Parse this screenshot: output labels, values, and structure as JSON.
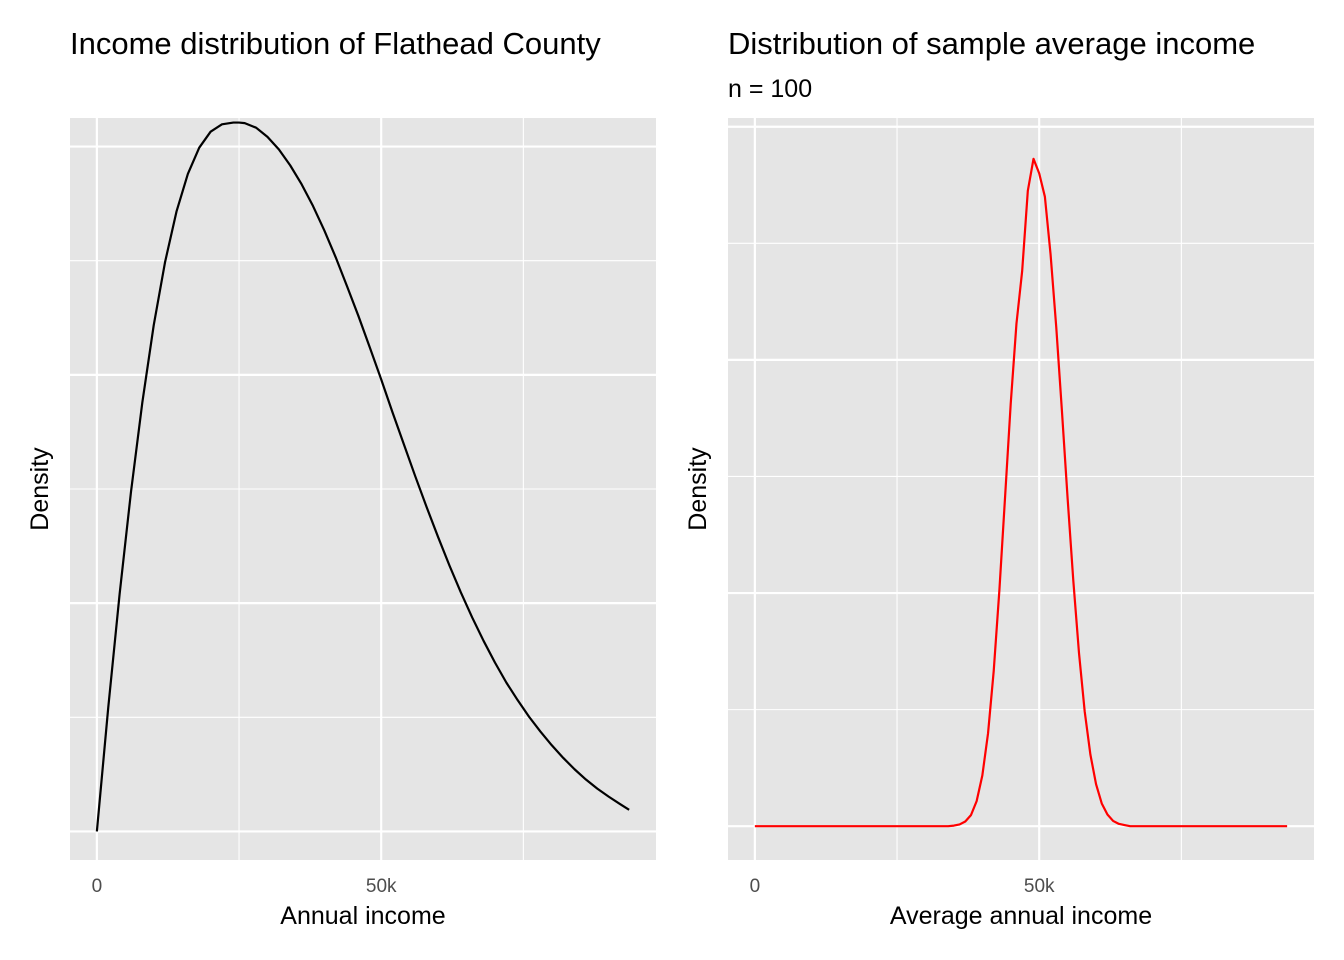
{
  "chart_data": [
    {
      "type": "line",
      "title": "Income distribution of Flathead County",
      "subtitle": "",
      "xlabel": "Annual income",
      "ylabel": "Density",
      "xlim": [
        -4725,
        98325
      ],
      "ylim": [
        -5e-07,
        1.25e-05
      ],
      "x_ticks": [
        0,
        50000
      ],
      "x_tick_labels": [
        "0",
        "50k"
      ],
      "x_minor_grid": [
        25000,
        75000
      ],
      "y_major_grid": [
        0,
        4e-06,
        8e-06,
        1.2e-05
      ],
      "y_minor_grid": [
        2e-06,
        6e-06,
        1e-05
      ],
      "y_tick_labels_shown": false,
      "grid": true,
      "legend": "none",
      "series": [
        {
          "color": "#000000",
          "x": [
            0,
            2000,
            4000,
            6000,
            8000,
            10000,
            12000,
            14000,
            16000,
            18000,
            20000,
            22000,
            24000,
            25000,
            26000,
            28000,
            30000,
            32000,
            34000,
            36000,
            38000,
            40000,
            42000,
            44000,
            46000,
            48000,
            50000,
            52000,
            54000,
            56000,
            58000,
            60000,
            62000,
            64000,
            66000,
            68000,
            70000,
            72000,
            74000,
            76000,
            78000,
            80000,
            82000,
            84000,
            86000,
            88000,
            90000,
            92000,
            93600
          ],
          "y": [
            0,
            2.17e-06,
            4.16e-06,
            5.95e-06,
            7.52e-06,
            8.87e-06,
            9.98e-06,
            1.086e-05,
            1.152e-05,
            1.198e-05,
            1.226e-05,
            1.239e-05,
            1.242e-05,
            1.242e-05,
            1.241e-05,
            1.233e-05,
            1.217e-05,
            1.195e-05,
            1.167e-05,
            1.134e-05,
            1.096e-05,
            1.053e-05,
            1.006e-05,
            9.55e-06,
            9.03e-06,
            8.48e-06,
            7.92e-06,
            7.34e-06,
            6.78e-06,
            6.22e-06,
            5.68e-06,
            5.16e-06,
            4.66e-06,
            4.19e-06,
            3.75e-06,
            3.34e-06,
            2.96e-06,
            2.61e-06,
            2.3e-06,
            2.01e-06,
            1.75e-06,
            1.51e-06,
            1.29e-06,
            1.09e-06,
            9.1e-07,
            7.5e-07,
            6.1e-07,
            4.8e-07,
            3.8e-07
          ]
        }
      ]
    },
    {
      "type": "line",
      "title": "Distribution of sample average income",
      "subtitle": "n = 100",
      "xlabel": "Average annual income",
      "ylabel": "Density",
      "xlim": [
        -4725,
        98325
      ],
      "ylim": [
        -5.8e-06,
        0.0001215
      ],
      "x_ticks": [
        0,
        50000
      ],
      "x_tick_labels": [
        "0",
        "50k"
      ],
      "x_minor_grid": [
        25000,
        75000
      ],
      "y_major_grid": [
        0,
        4e-05,
        8e-05,
        0.00012
      ],
      "y_minor_grid": [
        2e-05,
        6e-05,
        0.0001
      ],
      "y_tick_labels_shown": false,
      "grid": true,
      "legend": "none",
      "series": [
        {
          "color": "#ff0000",
          "x": [
            0,
            34000,
            35000,
            36000,
            37000,
            38000,
            39000,
            40000,
            41000,
            42000,
            43000,
            44000,
            45000,
            46000,
            47000,
            48000,
            49000,
            50000,
            51000,
            52000,
            53000,
            54000,
            55000,
            56000,
            57000,
            58000,
            59000,
            60000,
            61000,
            62000,
            63000,
            64000,
            65000,
            66000,
            93600
          ],
          "y": [
            0,
            0,
            1e-07,
            3e-07,
            8e-07,
            1.9e-06,
            4.3e-06,
            8.7e-06,
            1.59e-05,
            2.66e-05,
            4.05e-05,
            5.65e-05,
            7.26e-05,
            8.62e-05,
            9.52e-05,
            0.000109,
            0.0001145,
            0.000112,
            0.000108,
            9.81e-05,
            8.56e-05,
            7.12e-05,
            5.62e-05,
            4.21e-05,
            2.97e-05,
            1.97e-05,
            1.23e-05,
            7.2e-06,
            3.9e-06,
            2e-06,
            9e-07,
            4e-07,
            2e-07,
            0,
            0
          ]
        }
      ]
    }
  ]
}
